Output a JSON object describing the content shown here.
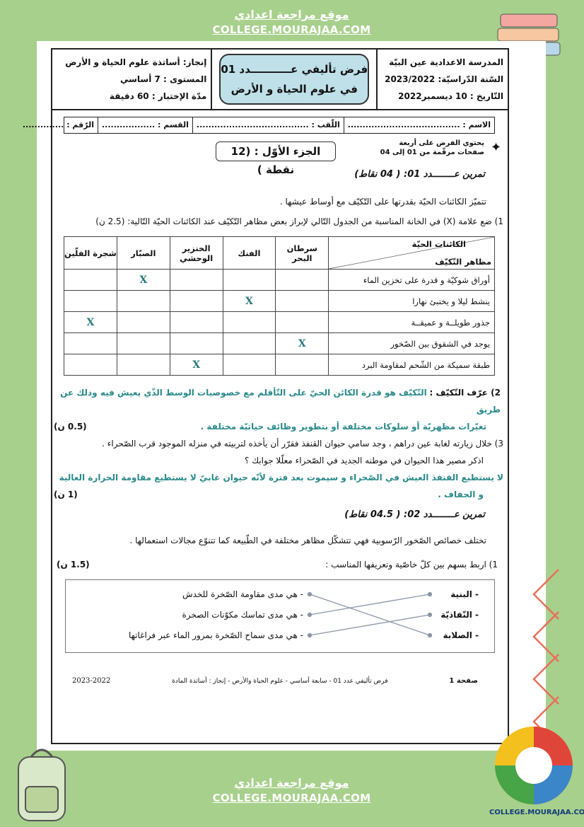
{
  "banner": {
    "arabic": "موقع مراجعة اعدادي",
    "site": "COLLEGE.MOURAJAA.COM"
  },
  "header": {
    "school": "المدرسة الاعدادية عين البيّة",
    "year": "السّنة الدّراسيّة: 2023/2022",
    "date": "التّاريخ : 10 ديسمبر2022",
    "title_line1": "فرض تأليفي عـــــــــــدد 01",
    "title_line2": "في علوم الحياة و الأرض",
    "author": "إنجاز: أساتذة علوم الحياة و الأرض",
    "level": "المستوى : 7 أساسي",
    "duration": "مدّة الإختبار : 60 دقيقة"
  },
  "info": {
    "name": "الاسم : ......................................",
    "surname": "اللّقب : ......................................",
    "class": "القسم : ..................",
    "number": "الرّقم : .............."
  },
  "pages_note_1": "يحتوي الفرض على أربعة",
  "pages_note_2": "صفحات مرقّمة من 01 إلى 04",
  "part_title": "الجزء الأوّل : (12 نقطة )",
  "ex1": {
    "title": "تمرين عــــــــدد 01: ( 04 نقاط)",
    "intro": "تتميّز الكائنات الحيّة بقدرتها على التّكيّف مع أوساط عيشها .",
    "q1": "1) ضع علامة (X) في الخانة المناسبة من الجدول التّالي لإبراز بعض مظاهر التّكيّف عند الكائنات الحيّة التّالية: (2.5 ن)",
    "table": {
      "corner_top": "الكائنات الحيّة",
      "corner_bottom": "مظاهر التّكيّف",
      "columns": [
        "سرطان البحر",
        "الفنك",
        "الخنزير الوحشي",
        "الصبّار",
        "شجرة الفلّين"
      ],
      "mark": "X",
      "rows": [
        {
          "label": "أوراق شوكيّة و قدرة على تخزين الماء",
          "marked_column": "الصبّار"
        },
        {
          "label": "ينشط ليلا و يختبئ نهارا",
          "marked_column": "الفنك"
        },
        {
          "label": "جذور طويلــة و عميقــة",
          "marked_column": "شجرة الفلّين"
        },
        {
          "label": "يوجد في الشقوق بين الصّخور",
          "marked_column": "سرطان البحر"
        },
        {
          "label": "طبقة سميكة من الشّحم لمقاومة البرد",
          "marked_column": "الخنزير الوحشي"
        }
      ]
    },
    "q2_label": "2) عرّف التّكيّف :",
    "q2_answer_1": "التّكيّف هو قدرة الكائن الحيّ على التّأقلم مع خصوصيات الوسط الذّي يعيش فيه وذلك عن طريق",
    "q2_answer_2": "تغيّرات مظهريّة أو سلوكات مختلفة أو بتطوير وظائف حياتيّة مختلفة .",
    "q2_points": "(0.5 ن)",
    "q3_1": "3) خلال زيارته لغابة عين دراهم ، وجد سامي حيوان القنفذ فقرّر أن يأخذه لتربيته في منزله الموجود قرب الصّحراء .",
    "q3_2": "اذكر مصير هذا الحيوان في موطنه الجديد في الصّحراء معلّلا جوابك ؟",
    "q3_answer_1": "لا يستطيع القنفذ العيش في الصّحراء و سيموت بعد فترة لأنّه حيوان غابيّ لا يستطيع مقاومة الحرارة العالية",
    "q3_answer_2": "و الجفاف .",
    "q3_points": "(1 ن)"
  },
  "ex2": {
    "title": "تمرين عــــــــدد 02: ( 04.5 نقاط)",
    "intro": "تختلف خصائص الصّخور الرّسوبية فهي تتشكّل مظاهر مختلفة في الطّبيعة كما تتنوّع مجالات استعمالها .",
    "q1": "1) اربط بسهم بين كلّ خاصّية وتعريفها المناسب :",
    "q1_points": "(1.5 ن)",
    "properties": [
      "- البنية",
      "- النّفاذيّة",
      "- الصلابة"
    ],
    "definitions": [
      "- هي مدى مقاومة الصّخرة للخدش",
      "- هي مدى تماسك مكوّنات الصخرة",
      "- هي مدى سماح الصّخرة بمرور الماء عبر فراغاتها"
    ]
  },
  "footer": {
    "page": "صفحة 1",
    "center": "فرض تأليفي عدد 01 - سابعة أساسي - علوم الحياة والأرض - إنجاز : أساتذة المادة",
    "year": "2023-2022"
  },
  "logo_text": "COLLEGE.MOURAJAA.COM",
  "colors": {
    "background": "#a8d08d",
    "answer": "#2a8a8a",
    "title_box": "#bfe0e8"
  }
}
